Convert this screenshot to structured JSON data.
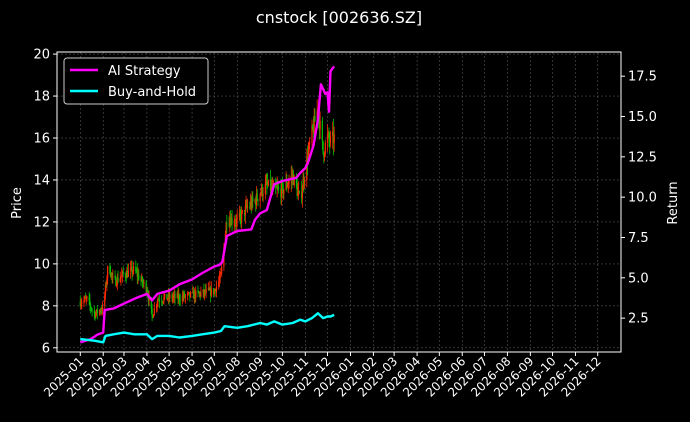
{
  "chart_data": {
    "type": "line",
    "title": "cnstock [002636.SZ]",
    "xlabel": "",
    "ylabel_left": "Price",
    "ylabel_right": "Return",
    "x_ticks": [
      "2025-01",
      "2025-02",
      "2025-03",
      "2025-04",
      "2025-05",
      "2025-06",
      "2025-07",
      "2025-08",
      "2025-09",
      "2025-10",
      "2025-11",
      "2025-12",
      "2026-01",
      "2026-02",
      "2026-03",
      "2026-04",
      "2026-05",
      "2026-06",
      "2026-07",
      "2026-08",
      "2026-09",
      "2026-10",
      "2026-11",
      "2026-12"
    ],
    "y_left_ticks": [
      6,
      8,
      10,
      12,
      14,
      16,
      18,
      20
    ],
    "y_left_lim": [
      5.8,
      20.1
    ],
    "y_right_ticks": [
      2.5,
      5.0,
      7.5,
      10.0,
      12.5,
      15.0,
      17.5
    ],
    "y_right_lim": [
      0.4,
      19.0
    ],
    "grid": true,
    "legend_position": "upper-left",
    "colors": {
      "background": "#000000",
      "strategy": "#ff00ff",
      "buy_hold": "#00ffff",
      "candle_up": "#ff2a00",
      "candle_down": "#00c000",
      "grid": "#555555"
    },
    "series": [
      {
        "name": "AI Strategy",
        "axis": "right",
        "x": [
          "2025-01-01",
          "2025-01-15",
          "2025-01-25",
          "2025-02-01",
          "2025-02-03",
          "2025-02-15",
          "2025-03-01",
          "2025-03-15",
          "2025-04-01",
          "2025-04-08",
          "2025-04-15",
          "2025-05-01",
          "2025-05-15",
          "2025-06-01",
          "2025-06-15",
          "2025-07-01",
          "2025-07-08",
          "2025-07-12",
          "2025-07-18",
          "2025-08-01",
          "2025-08-20",
          "2025-08-25",
          "2025-09-01",
          "2025-09-10",
          "2025-09-20",
          "2025-10-01",
          "2025-10-20",
          "2025-10-25",
          "2025-11-01",
          "2025-11-05",
          "2025-11-12",
          "2025-11-18",
          "2025-11-22",
          "2025-11-28",
          "2025-12-01",
          "2025-12-03",
          "2025-12-05",
          "2025-12-08",
          "2025-12-10"
        ],
        "y": [
          1.0,
          1.2,
          1.5,
          1.6,
          3.0,
          3.1,
          3.4,
          3.7,
          4.0,
          3.6,
          4.0,
          4.2,
          4.6,
          4.9,
          5.3,
          5.7,
          5.8,
          6.0,
          7.6,
          7.9,
          8.0,
          8.6,
          9.0,
          9.2,
          10.8,
          11.0,
          11.2,
          11.5,
          11.8,
          12.2,
          13.2,
          14.8,
          17.0,
          16.4,
          16.5,
          15.3,
          17.8,
          18.0,
          18.1
        ]
      },
      {
        "name": "Buy-and-Hold",
        "axis": "right",
        "x": [
          "2025-01-01",
          "2025-01-20",
          "2025-02-01",
          "2025-02-04",
          "2025-02-15",
          "2025-03-01",
          "2025-03-15",
          "2025-04-01",
          "2025-04-08",
          "2025-04-15",
          "2025-05-01",
          "2025-05-15",
          "2025-06-01",
          "2025-06-15",
          "2025-07-01",
          "2025-07-10",
          "2025-07-15",
          "2025-08-01",
          "2025-08-15",
          "2025-09-01",
          "2025-09-10",
          "2025-09-20",
          "2025-10-01",
          "2025-10-15",
          "2025-10-25",
          "2025-11-01",
          "2025-11-10",
          "2025-11-18",
          "2025-11-25",
          "2025-12-01",
          "2025-12-05",
          "2025-12-10"
        ],
        "y": [
          1.2,
          1.1,
          1.0,
          1.4,
          1.5,
          1.6,
          1.5,
          1.5,
          1.2,
          1.4,
          1.4,
          1.3,
          1.4,
          1.5,
          1.6,
          1.7,
          2.0,
          1.9,
          2.0,
          2.2,
          2.1,
          2.3,
          2.1,
          2.2,
          2.4,
          2.3,
          2.5,
          2.8,
          2.5,
          2.6,
          2.6,
          2.7
        ]
      }
    ],
    "price": {
      "axis": "left",
      "x": [
        "2025-01-01",
        "2025-01-10",
        "2025-01-20",
        "2025-02-01",
        "2025-02-08",
        "2025-02-15",
        "2025-03-01",
        "2025-03-15",
        "2025-04-01",
        "2025-04-08",
        "2025-04-15",
        "2025-05-01",
        "2025-05-15",
        "2025-06-01",
        "2025-06-15",
        "2025-07-01",
        "2025-07-10",
        "2025-07-18",
        "2025-08-01",
        "2025-08-15",
        "2025-08-25",
        "2025-09-01",
        "2025-09-10",
        "2025-09-20",
        "2025-10-01",
        "2025-10-15",
        "2025-10-25",
        "2025-11-01",
        "2025-11-10",
        "2025-11-18",
        "2025-11-25",
        "2025-12-01",
        "2025-12-05",
        "2025-12-10"
      ],
      "values": [
        8.2,
        8.3,
        7.6,
        7.9,
        10.0,
        9.1,
        9.5,
        9.7,
        8.8,
        7.5,
        8.3,
        8.4,
        8.4,
        8.5,
        8.6,
        8.7,
        9.4,
        12.2,
        12.0,
        12.7,
        13.0,
        13.4,
        13.7,
        13.5,
        13.5,
        14.2,
        13.0,
        14.5,
        16.2,
        17.4,
        15.3,
        16.0,
        15.8,
        16.0
      ]
    }
  }
}
